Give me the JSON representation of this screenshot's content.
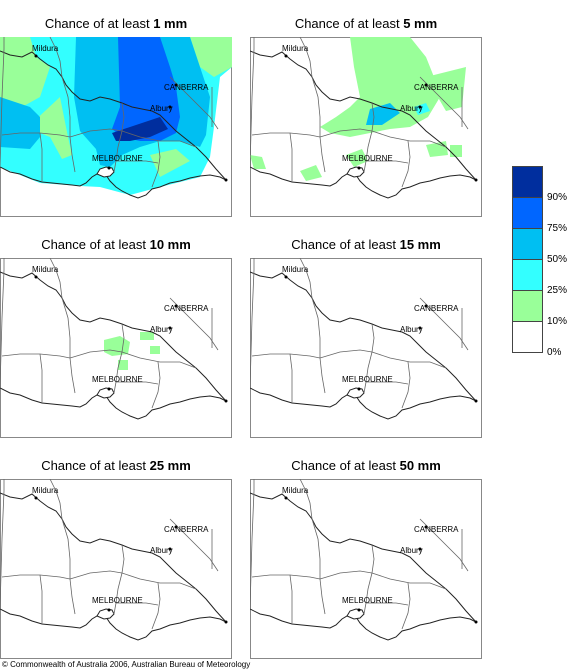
{
  "panels": [
    {
      "prefix": "Chance of at least ",
      "amount": "1 mm"
    },
    {
      "prefix": "Chance of at least ",
      "amount": "5 mm"
    },
    {
      "prefix": "Chance of at least ",
      "amount": "10 mm"
    },
    {
      "prefix": "Chance of at least ",
      "amount": "15 mm"
    },
    {
      "prefix": "Chance of at least ",
      "amount": "25 mm"
    },
    {
      "prefix": "Chance of at least ",
      "amount": "50 mm"
    }
  ],
  "places": {
    "mildura": "Mildura",
    "canberra": "CANBERRA",
    "albury": "Albury",
    "melbourne": "MELBOURNE"
  },
  "legend": {
    "ticks": [
      "90%",
      "75%",
      "50%",
      "25%",
      "10%",
      "0%"
    ],
    "colors": [
      "#002e9e",
      "#0066ff",
      "#00bff2",
      "#33ffff",
      "#99ff99",
      "#ffffff"
    ]
  },
  "copyright": "© Commonwealth of Australia 2006, Australian Bureau of Meteorology"
}
